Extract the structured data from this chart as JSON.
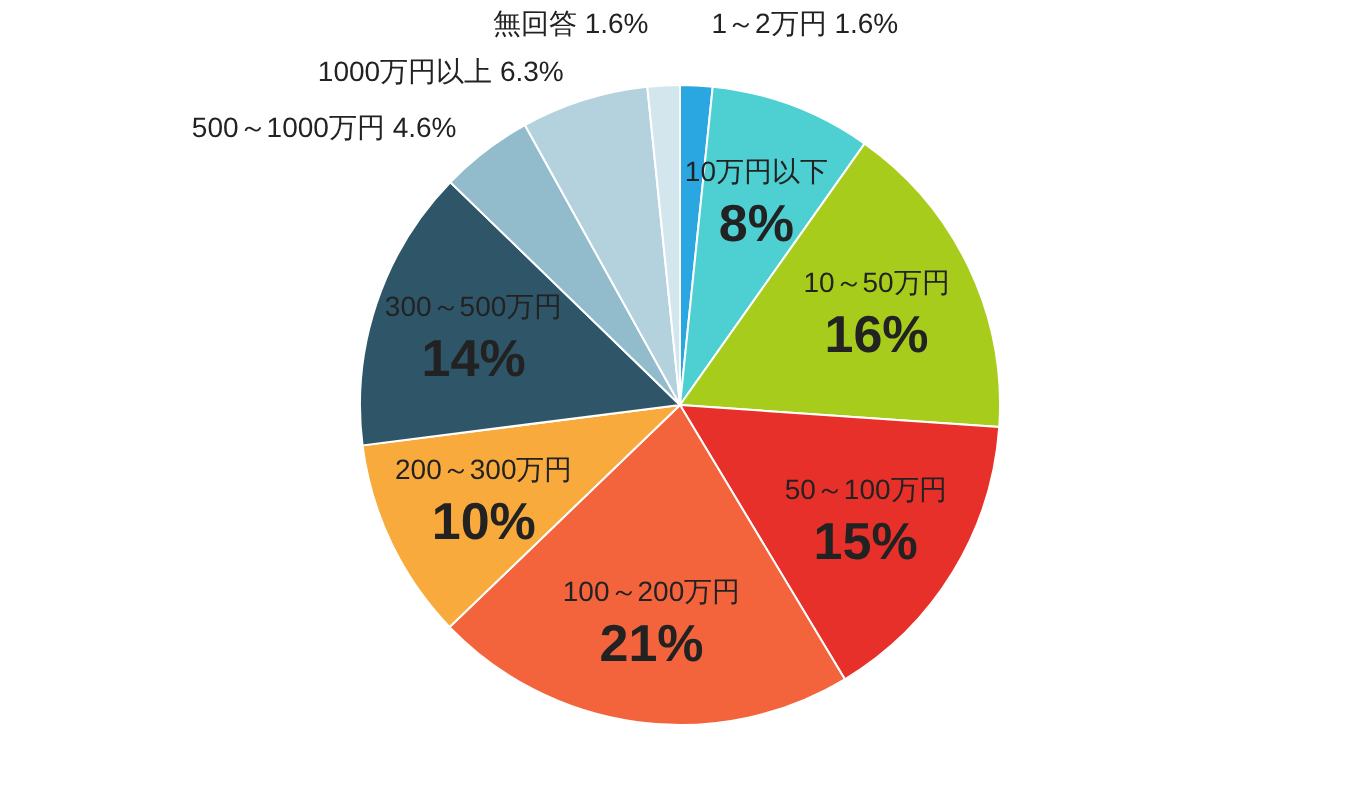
{
  "chart_data": {
    "type": "pie",
    "categories": [
      "1～2万円",
      "10万円以下",
      "10～50万円",
      "50～100万円",
      "100～200万円",
      "200～300万円",
      "300～500万円",
      "500～1000万円",
      "1000万円以上",
      "無回答"
    ],
    "values": [
      1.6,
      8,
      16,
      15,
      21,
      10,
      14,
      4.6,
      6.3,
      1.6
    ],
    "value_labels": [
      "1.6%",
      "8%",
      "16%",
      "15%",
      "21%",
      "10%",
      "14%",
      "4.6%",
      "6.3%",
      "1.6%"
    ],
    "colors": [
      "#2aa6e0",
      "#4ecfd2",
      "#a8cc1c",
      "#e8302a",
      "#f4643c",
      "#f9aa3c",
      "#2f5668",
      "#92bccb",
      "#b3d2de",
      "#d3e6ee"
    ]
  }
}
